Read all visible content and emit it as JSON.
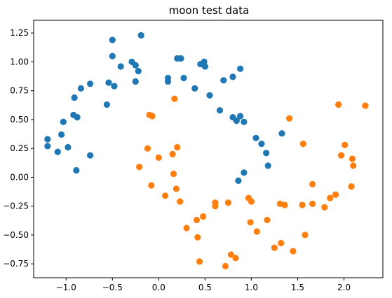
{
  "chart_data": {
    "type": "scatter",
    "title": "moon test data",
    "xlabel": "",
    "ylabel": "",
    "xlim": [
      -1.35,
      2.42
    ],
    "ylim": [
      -0.87,
      1.36
    ],
    "xticks": [
      -1.0,
      -0.5,
      0.0,
      0.5,
      1.0,
      1.5,
      2.0
    ],
    "xtick_labels": [
      "−1.0",
      "−0.5",
      "0.0",
      "0.5",
      "1.0",
      "1.5",
      "2.0"
    ],
    "yticks": [
      -0.75,
      -0.5,
      -0.25,
      0.0,
      0.25,
      0.5,
      0.75,
      1.0,
      1.25
    ],
    "ytick_labels": [
      "−0.75",
      "−0.50",
      "−0.25",
      "0.00",
      "0.25",
      "0.50",
      "0.75",
      "1.00",
      "1.25"
    ],
    "grid": false,
    "legend": "none",
    "series": [
      {
        "color": "#1f77b4",
        "points": [
          [
            -1.2,
            0.33
          ],
          [
            -1.2,
            0.27
          ],
          [
            -1.09,
            0.22
          ],
          [
            -1.05,
            0.37
          ],
          [
            -1.03,
            0.48
          ],
          [
            -0.98,
            0.26
          ],
          [
            -0.92,
            0.54
          ],
          [
            -0.91,
            0.69
          ],
          [
            -0.89,
            0.06
          ],
          [
            -0.88,
            0.52
          ],
          [
            -0.84,
            0.77
          ],
          [
            -0.74,
            0.81
          ],
          [
            -0.74,
            0.19
          ],
          [
            -0.56,
            0.63
          ],
          [
            -0.54,
            0.82
          ],
          [
            -0.5,
            1.19
          ],
          [
            -0.5,
            1.05
          ],
          [
            -0.48,
            0.79
          ],
          [
            -0.41,
            0.96
          ],
          [
            -0.29,
            1.0
          ],
          [
            -0.25,
            0.97
          ],
          [
            -0.25,
            0.83
          ],
          [
            -0.22,
            0.92
          ],
          [
            -0.19,
            1.23
          ],
          [
            0.1,
            0.86
          ],
          [
            0.1,
            0.83
          ],
          [
            0.2,
            1.03
          ],
          [
            0.24,
            1.03
          ],
          [
            0.27,
            0.86
          ],
          [
            0.39,
            0.77
          ],
          [
            0.45,
            0.98
          ],
          [
            0.49,
            1.0
          ],
          [
            0.5,
            0.96
          ],
          [
            0.55,
            0.71
          ],
          [
            0.66,
            0.58
          ],
          [
            0.7,
            0.84
          ],
          [
            0.8,
            0.87
          ],
          [
            0.8,
            0.52
          ],
          [
            0.84,
            0.49
          ],
          [
            0.88,
            0.94
          ],
          [
            0.88,
            0.53
          ],
          [
            0.92,
            0.48
          ],
          [
            0.86,
            -0.03
          ],
          [
            0.92,
            0.04
          ],
          [
            1.05,
            0.34
          ],
          [
            1.11,
            0.29
          ],
          [
            1.16,
            0.21
          ],
          [
            1.18,
            0.1
          ],
          [
            1.33,
            0.38
          ]
        ]
      },
      {
        "color": "#ff7f0e",
        "points": [
          [
            -0.21,
            0.09
          ],
          [
            -0.12,
            0.25
          ],
          [
            -0.1,
            0.54
          ],
          [
            -0.07,
            0.53
          ],
          [
            -0.08,
            -0.07
          ],
          [
            0.0,
            0.17
          ],
          [
            0.07,
            -0.16
          ],
          [
            0.15,
            0.2
          ],
          [
            0.17,
            0.68
          ],
          [
            0.16,
            0.03
          ],
          [
            0.2,
            0.26
          ],
          [
            0.19,
            -0.1
          ],
          [
            0.23,
            -0.21
          ],
          [
            0.3,
            -0.44
          ],
          [
            0.41,
            -0.37
          ],
          [
            0.42,
            -0.52
          ],
          [
            0.44,
            -0.73
          ],
          [
            0.48,
            -0.34
          ],
          [
            0.61,
            -0.22
          ],
          [
            0.61,
            -0.25
          ],
          [
            0.72,
            -0.77
          ],
          [
            0.75,
            -0.22
          ],
          [
            0.78,
            -0.67
          ],
          [
            0.83,
            -0.7
          ],
          [
            0.97,
            -0.18
          ],
          [
            0.99,
            -0.39
          ],
          [
            1.0,
            -0.21
          ],
          [
            1.06,
            -0.47
          ],
          [
            1.17,
            -0.37
          ],
          [
            1.25,
            -0.61
          ],
          [
            1.31,
            -0.23
          ],
          [
            1.32,
            -0.57
          ],
          [
            1.36,
            -0.24
          ],
          [
            1.41,
            0.51
          ],
          [
            1.45,
            -0.64
          ],
          [
            1.56,
            0.29
          ],
          [
            1.55,
            -0.24
          ],
          [
            1.58,
            -0.5
          ],
          [
            1.66,
            -0.06
          ],
          [
            1.66,
            -0.23
          ],
          [
            1.79,
            -0.26
          ],
          [
            1.85,
            -0.18
          ],
          [
            1.91,
            -0.15
          ],
          [
            1.94,
            0.63
          ],
          [
            1.97,
            0.19
          ],
          [
            2.01,
            0.28
          ],
          [
            2.08,
            -0.08
          ],
          [
            2.09,
            0.16
          ],
          [
            2.1,
            0.1
          ],
          [
            2.23,
            0.62
          ]
        ]
      }
    ]
  }
}
